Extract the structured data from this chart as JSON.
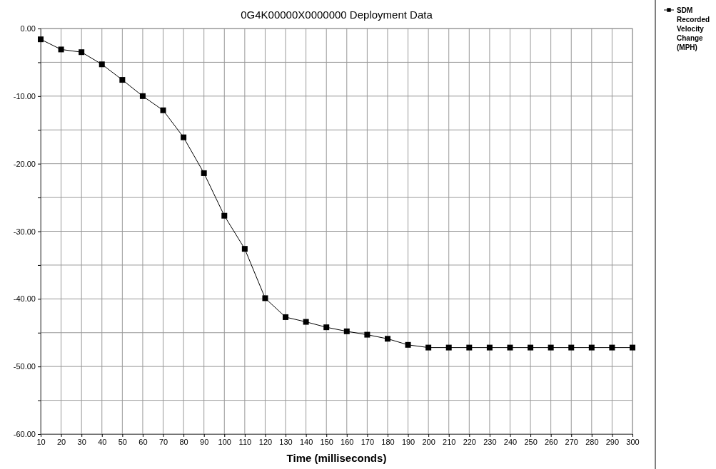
{
  "chart_data": {
    "type": "line",
    "title": "0G4K00000X0000000  Deployment Data",
    "xlabel": "Time (milliseconds)",
    "x": [
      10,
      20,
      30,
      40,
      50,
      60,
      70,
      80,
      90,
      100,
      110,
      120,
      130,
      140,
      150,
      160,
      170,
      180,
      190,
      200,
      210,
      220,
      230,
      240,
      250,
      260,
      270,
      280,
      290,
      300
    ],
    "series": [
      {
        "name": "SDM Recorded Velocity Change (MPH)",
        "color": "#000000",
        "values": [
          -1.6,
          -3.1,
          -3.5,
          -5.3,
          -7.6,
          -10.0,
          -12.1,
          -16.1,
          -21.4,
          -27.7,
          -32.6,
          -39.9,
          -42.7,
          -43.4,
          -44.2,
          -44.8,
          -45.3,
          -45.9,
          -46.8,
          -47.2,
          -47.2,
          -47.2,
          -47.2,
          -47.2,
          -47.2,
          -47.2,
          -47.2,
          -47.2,
          -47.2,
          -47.2
        ]
      }
    ],
    "xlim": [
      10,
      300
    ],
    "xticks": [
      10,
      20,
      30,
      40,
      50,
      60,
      70,
      80,
      90,
      100,
      110,
      120,
      130,
      140,
      150,
      160,
      170,
      180,
      190,
      200,
      210,
      220,
      230,
      240,
      250,
      260,
      270,
      280,
      290,
      300
    ],
    "ylim": [
      -60,
      0
    ],
    "yticks": [
      {
        "value": 0,
        "label": "0.00"
      },
      {
        "value": -5,
        "label": null
      },
      {
        "value": -10,
        "label": "-10.00"
      },
      {
        "value": -15,
        "label": null
      },
      {
        "value": -20,
        "label": "-20.00"
      },
      {
        "value": -25,
        "label": null
      },
      {
        "value": -30,
        "label": "-30.00"
      },
      {
        "value": -35,
        "label": null
      },
      {
        "value": -40,
        "label": "-40.00"
      },
      {
        "value": -45,
        "label": null
      },
      {
        "value": -50,
        "label": "-50.00"
      },
      {
        "value": -55,
        "label": null
      },
      {
        "value": -60,
        "label": "-60.00"
      }
    ],
    "grid": true,
    "legend": "right",
    "marker": "square",
    "line_style": "solid"
  }
}
